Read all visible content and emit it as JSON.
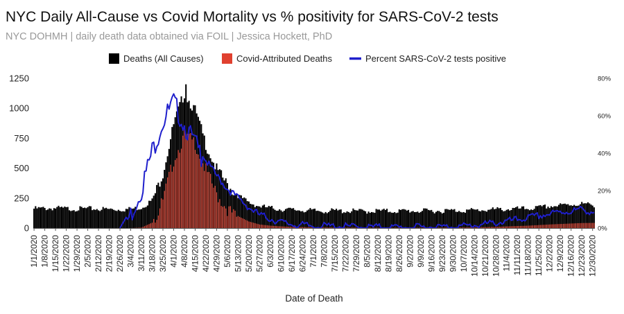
{
  "chart_data": {
    "type": "bar",
    "title": "NYC Daily All-Cause vs Covid Mortality vs % positivity for SARS-CoV-2 tests",
    "subtitle": "NYC DOHMH | daily death data obtained via FOIL | Jessica Hockett, PhD",
    "xlabel": "Date of Death",
    "ylabel": "",
    "ylim": [
      0,
      1250
    ],
    "y2lim": [
      0,
      80
    ],
    "y_ticks": [
      "0",
      "250",
      "500",
      "750",
      "1000",
      "1250"
    ],
    "y2_ticks": [
      "0%",
      "20%",
      "40%",
      "60%",
      "80%"
    ],
    "legend": {
      "position": "top",
      "entries": [
        {
          "name": "Deaths (All Causes)",
          "color": "#000000",
          "kind": "box"
        },
        {
          "name": "Covid-Attributed Deaths",
          "color": "#e0402f",
          "kind": "box"
        },
        {
          "name": "Percent SARS-CoV-2 tests positive",
          "color": "#1f1fcc",
          "kind": "line"
        }
      ]
    },
    "x_tick_labels": [
      "1/1/2020",
      "1/8/2020",
      "1/15/2020",
      "1/22/2020",
      "1/29/2020",
      "2/5/2020",
      "2/12/2020",
      "2/19/2020",
      "2/26/2020",
      "3/4/2020",
      "3/11/2020",
      "3/18/2020",
      "3/25/2020",
      "4/1/2020",
      "4/8/2020",
      "4/15/2020",
      "4/22/2020",
      "4/29/2020",
      "5/6/2020",
      "5/13/2020",
      "5/20/2020",
      "5/27/2020",
      "6/3/2020",
      "6/10/2020",
      "6/17/2020",
      "6/24/2020",
      "7/1/2020",
      "7/8/2020",
      "7/15/2020",
      "7/22/2020",
      "7/29/2020",
      "8/5/2020",
      "8/12/2020",
      "8/19/2020",
      "8/26/2020",
      "9/2/2020",
      "9/9/2020",
      "9/16/2020",
      "9/23/2020",
      "9/30/2020",
      "10/7/2020",
      "10/14/2020",
      "10/21/2020",
      "10/28/2020",
      "11/4/2020",
      "11/11/2020",
      "11/18/2020",
      "11/25/2020",
      "12/2/2020",
      "12/9/2020",
      "12/16/2020",
      "12/23/2020",
      "12/30/2020"
    ],
    "series": [
      {
        "name": "Deaths (All Causes)",
        "color": "#000000",
        "type": "bar",
        "weekly_values": [
          170,
          172,
          175,
          170,
          168,
          170,
          168,
          165,
          163,
          166,
          180,
          240,
          480,
          880,
          1150,
          1000,
          720,
          510,
          380,
          280,
          220,
          190,
          175,
          165,
          160,
          158,
          152,
          150,
          152,
          150,
          150,
          148,
          152,
          150,
          150,
          152,
          150,
          152,
          152,
          155,
          155,
          156,
          160,
          162,
          166,
          168,
          170,
          178,
          190,
          196,
          205,
          210,
          200
        ],
        "peak": {
          "index": 14,
          "value": 1200
        }
      },
      {
        "name": "Covid-Attributed Deaths",
        "color": "#e0402f",
        "type": "bar",
        "weekly_values": [
          0,
          0,
          0,
          0,
          0,
          0,
          0,
          0,
          0,
          0,
          4,
          45,
          260,
          600,
          800,
          740,
          510,
          310,
          190,
          100,
          55,
          30,
          20,
          14,
          10,
          8,
          6,
          5,
          5,
          4,
          4,
          3,
          3,
          3,
          3,
          3,
          3,
          3,
          4,
          4,
          5,
          6,
          8,
          10,
          14,
          17,
          20,
          25,
          30,
          34,
          38,
          42,
          43
        ]
      },
      {
        "name": "Percent SARS-CoV-2 tests positive",
        "color": "#1f1fcc",
        "type": "line",
        "axis": "right",
        "weekly_values": [
          null,
          null,
          null,
          null,
          null,
          null,
          null,
          null,
          0,
          10,
          24,
          44,
          60,
          70,
          58,
          48,
          37,
          29,
          22,
          17,
          12,
          8,
          6,
          4,
          3,
          2.5,
          2,
          2,
          2,
          1.8,
          1.6,
          1.5,
          1.5,
          1.4,
          1.3,
          1.3,
          1.4,
          1.5,
          1.6,
          1.8,
          2,
          2.5,
          3,
          3.8,
          4.5,
          5.5,
          6.5,
          7.5,
          8.5,
          9.5,
          10,
          11,
          9.5
        ]
      }
    ]
  }
}
